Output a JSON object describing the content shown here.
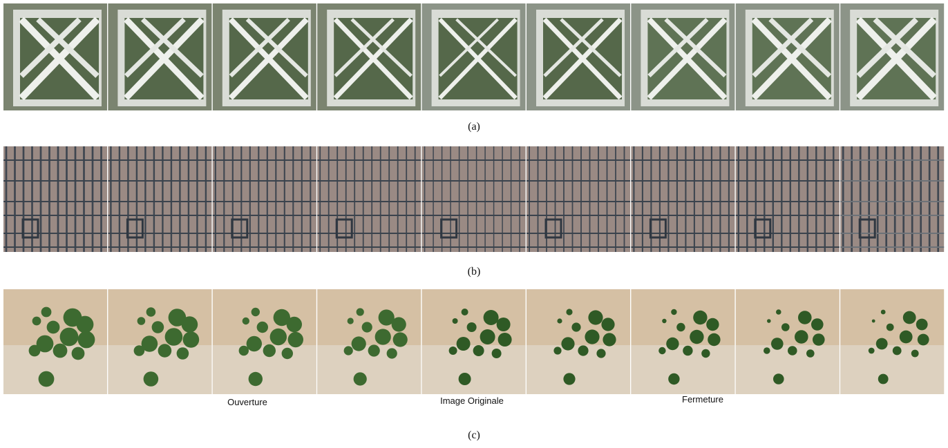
{
  "figure": {
    "rows": [
      {
        "label": "(a)"
      },
      {
        "label": "(b)"
      },
      {
        "label": "(c)",
        "annotations": [
          "Ouverture",
          "Image Originale",
          "Fermeture"
        ]
      }
    ]
  }
}
